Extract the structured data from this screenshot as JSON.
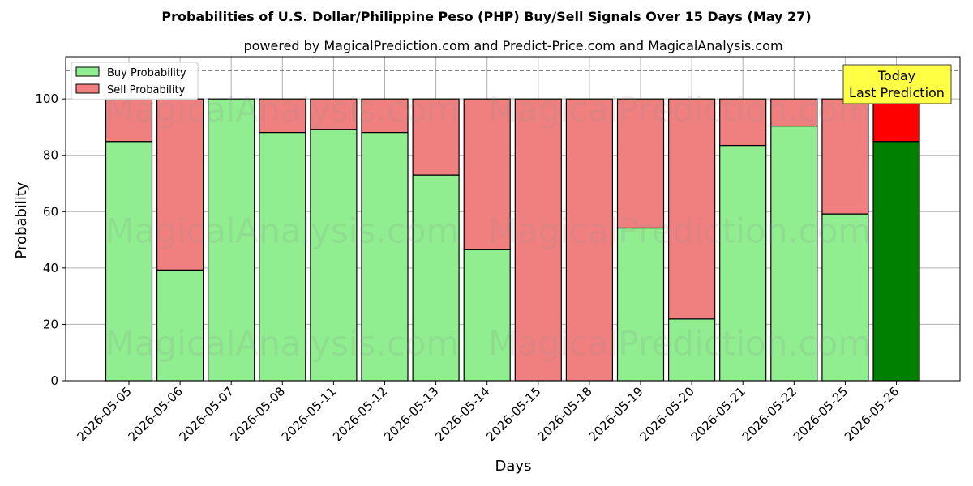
{
  "chart_data": {
    "type": "bar",
    "stacked": true,
    "title": "Probabilities of U.S. Dollar/Philippine Peso (PHP) Buy/Sell Signals Over 15 Days (May 27)",
    "subtitle": "powered by MagicalPrediction.com and Predict-Price.com and MagicalAnalysis.com",
    "xlabel": "Days",
    "ylabel": "Probability",
    "ylim": [
      0,
      115
    ],
    "yticks": [
      0,
      20,
      40,
      60,
      80,
      100
    ],
    "reference_line": 110,
    "grid": true,
    "legend_position": "top-left",
    "categories": [
      "2026-05-05",
      "2026-05-06",
      "2026-05-07",
      "2026-05-08",
      "2026-05-11",
      "2026-05-12",
      "2026-05-13",
      "2026-05-14",
      "2026-05-15",
      "2026-05-18",
      "2026-05-19",
      "2026-05-20",
      "2026-05-21",
      "2026-05-22",
      "2026-05-25",
      "2026-05-26"
    ],
    "series": [
      {
        "name": "Buy Probability",
        "color": "#90ee90",
        "highlight_color": "#008000",
        "values": [
          84.9,
          39.3,
          100,
          88.1,
          89.2,
          88.1,
          73,
          46.5,
          0,
          0,
          54.2,
          21.9,
          83.5,
          90.4,
          59.2,
          84.9
        ]
      },
      {
        "name": "Sell Probability",
        "color": "#f08080",
        "highlight_color": "#ff0000",
        "values": [
          15.1,
          60.7,
          0,
          11.9,
          10.8,
          11.9,
          27,
          53.5,
          100,
          100,
          45.8,
          78.1,
          16.5,
          9.6,
          40.8,
          15.1
        ]
      }
    ],
    "highlight_index": 15,
    "annotation": {
      "line1": "Today",
      "line2": "Last Prediction",
      "color": "#ffff44"
    },
    "watermarks": [
      "MagicalAnalysis.com",
      "MagicalPrediction.com"
    ]
  }
}
